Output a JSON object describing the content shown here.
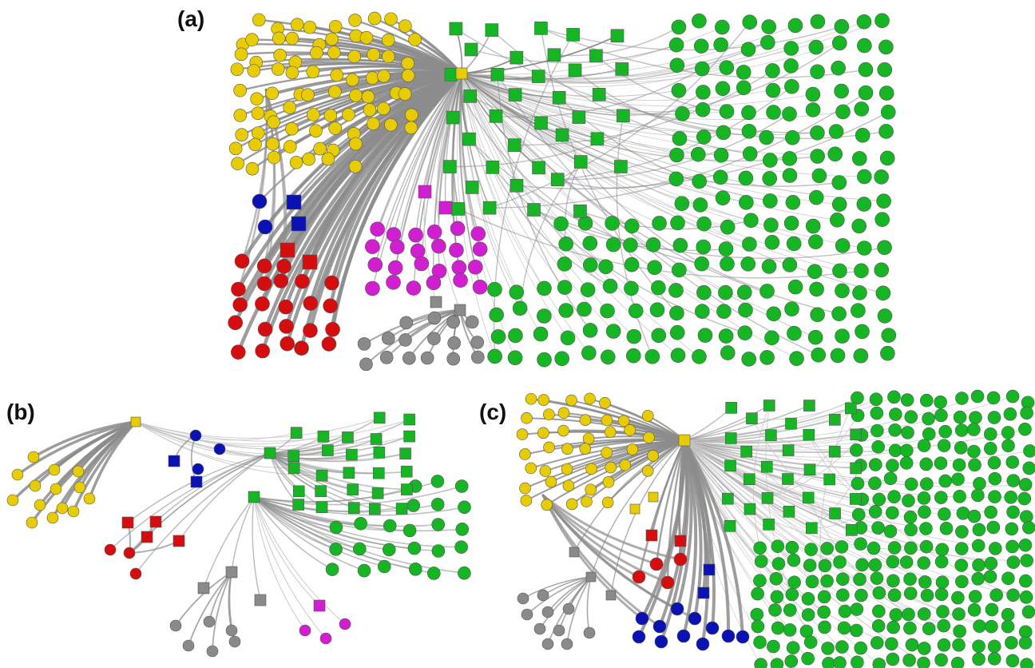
{
  "panels": [
    {
      "label": "(a)"
    },
    {
      "label": "(b)"
    },
    {
      "label": "(c)"
    }
  ],
  "colors": {
    "yellow": "#e6cc00",
    "green": "#16b523",
    "blue": "#0a12b4",
    "red": "#d40e0e",
    "magenta": "#d11ed1",
    "gray": "#8a8a8a",
    "edge_heavy": "#8c8c8c",
    "edge_light": "#c4c4c4"
  }
}
